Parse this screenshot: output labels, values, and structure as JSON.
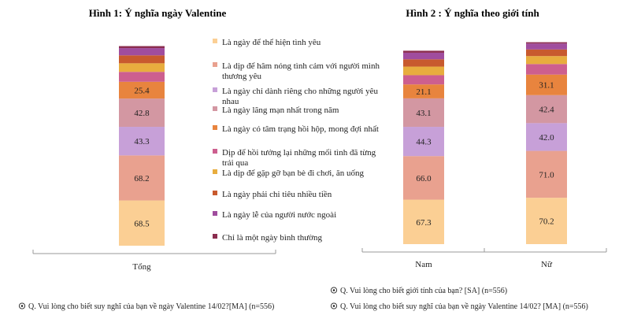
{
  "chart_data": [
    {
      "type": "bar",
      "stacked": true,
      "title": "Hình 1: Ý nghĩa ngày Valentine",
      "categories": [
        "Tổng"
      ],
      "series": [
        {
          "name": "Là ngày để thể hiện tình yêu",
          "color": "#fbcf94",
          "values": [
            68.5
          ],
          "label": "68.5"
        },
        {
          "name": "Là dịp để hâm nóng tình cảm với người mình thương yêu",
          "color": "#e9a18f",
          "values": [
            68.2
          ],
          "label": "68.2"
        },
        {
          "name": "Là ngày chỉ dành riêng cho những người yêu nhau",
          "color": "#c7a0d8",
          "values": [
            43.3
          ],
          "label": "43.3"
        },
        {
          "name": "Là ngày lãng mạn nhất trong năm",
          "color": "#d397a2",
          "values": [
            42.8
          ],
          "label": "42.8"
        },
        {
          "name": "Là ngày có tâm trạng hồi hộp, mong đợi nhất",
          "color": "#e8843e",
          "values": [
            25.4
          ],
          "label": "25.4"
        },
        {
          "name": "Dịp để hồi tưởng lại những mối tình đã từng trải qua",
          "color": "#cd5f8f",
          "values": [
            15
          ],
          "label": ""
        },
        {
          "name": "Là dịp để gặp gỡ bạn bè đi chơi, ăn uống",
          "color": "#e8ad3e",
          "values": [
            13
          ],
          "label": ""
        },
        {
          "name": "Là ngày phải chi tiêu nhiều tiền",
          "color": "#c85a2e",
          "values": [
            12
          ],
          "label": ""
        },
        {
          "name": "Là ngày lễ của người nước ngoài",
          "color": "#a04d9e",
          "values": [
            11
          ],
          "label": ""
        },
        {
          "name": "Chỉ là một ngày bình thường",
          "color": "#8b2d4f",
          "values": [
            3
          ],
          "label": ""
        }
      ],
      "ylim": [
        0,
        310
      ],
      "legend": "right",
      "grid": false,
      "footnote": "Q. Vui lòng cho biết suy nghĩ của bạn về ngày Valentine 14/02?[MA] (n=556)"
    },
    {
      "type": "bar",
      "stacked": true,
      "title": "Hình 2 : Ý nghĩa theo giới tính",
      "categories": [
        "Nam",
        "Nữ"
      ],
      "series": [
        {
          "name": "Là ngày để thể hiện tình yêu",
          "color": "#fbcf94",
          "values": [
            67.3,
            70.2
          ],
          "labels": [
            "67.3",
            "70.2"
          ]
        },
        {
          "name": "Là dịp để hâm nóng tình cảm với người mình thương yêu",
          "color": "#e9a18f",
          "values": [
            66.0,
            71.0
          ],
          "labels": [
            "66.0",
            "71.0"
          ]
        },
        {
          "name": "Là ngày chỉ dành riêng cho những người yêu nhau",
          "color": "#c7a0d8",
          "values": [
            44.3,
            42.0
          ],
          "labels": [
            "44.3",
            "42.0"
          ]
        },
        {
          "name": "Là ngày lãng mạn nhất trong năm",
          "color": "#d397a2",
          "values": [
            43.1,
            42.4
          ],
          "labels": [
            "43.1",
            "42.4"
          ]
        },
        {
          "name": "Là ngày có tâm trạng hồi hộp, mong đợi nhất",
          "color": "#e8843e",
          "values": [
            21.1,
            31.1
          ],
          "labels": [
            "21.1",
            "31.1"
          ]
        },
        {
          "name": "Dịp để hồi tưởng lại những mối tình đã từng trải qua",
          "color": "#cd5f8f",
          "values": [
            14,
            16
          ],
          "labels": [
            "",
            ""
          ]
        },
        {
          "name": "Là dịp để gặp gỡ bạn bè đi chơi, ăn uống",
          "color": "#e8ad3e",
          "values": [
            13,
            12
          ],
          "labels": [
            "",
            ""
          ]
        },
        {
          "name": "Là ngày phải chi tiêu nhiều tiền",
          "color": "#c85a2e",
          "values": [
            11,
            10
          ],
          "labels": [
            "",
            ""
          ]
        },
        {
          "name": "Là ngày lễ của người nước ngoài",
          "color": "#a04d9e",
          "values": [
            10,
            9
          ],
          "labels": [
            "",
            ""
          ]
        },
        {
          "name": "Chỉ là một ngày bình thường",
          "color": "#8b2d4f",
          "values": [
            3,
            2
          ],
          "labels": [
            "",
            ""
          ]
        }
      ],
      "ylim": [
        0,
        310
      ],
      "grid": false,
      "footnotes": [
        "Q. Vui lòng cho biết giới tính của bạn? [SA] (n=556)",
        "Q. Vui lòng cho biết suy nghĩ của bạn về ngày Valentine 14/02? [MA] (n=556)"
      ]
    }
  ]
}
